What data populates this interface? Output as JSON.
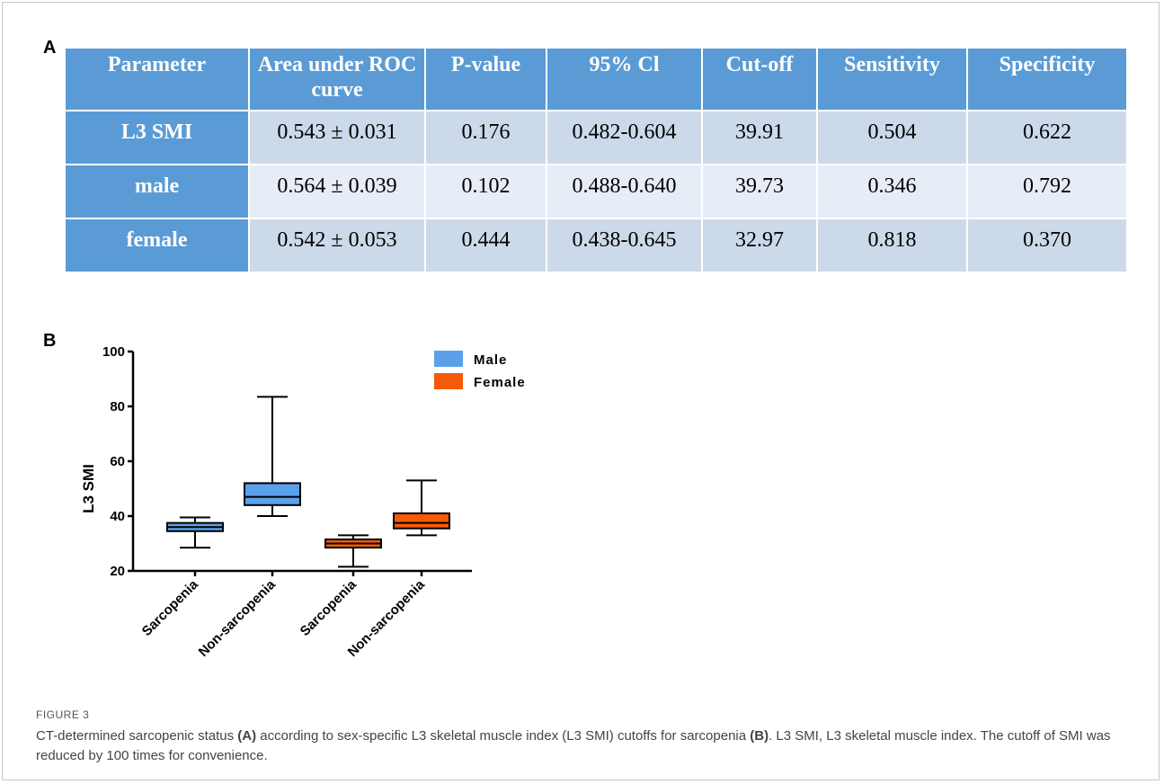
{
  "panel_a_label": "A",
  "panel_b_label": "B",
  "table": {
    "headers": [
      "Parameter",
      "Area under ROC curve",
      "P-value",
      "95% Cl",
      "Cut-off",
      "Sensitivity",
      "Specificity"
    ],
    "rows": [
      [
        "L3 SMI",
        "0.543 ± 0.031",
        "0.176",
        "0.482-0.604",
        "39.91",
        "0.504",
        "0.622"
      ],
      [
        "male",
        "0.564 ± 0.039",
        "0.102",
        "0.488-0.640",
        "39.73",
        "0.346",
        "0.792"
      ],
      [
        "female",
        "0.542 ± 0.053",
        "0.444",
        "0.438-0.645",
        "32.97",
        "0.818",
        "0.370"
      ]
    ]
  },
  "chart_data": {
    "type": "box",
    "ylabel": "L3 SMI",
    "ylim": [
      20,
      100
    ],
    "yticks": [
      20,
      40,
      60,
      80,
      100
    ],
    "categories": [
      "Sarcopenia",
      "Non-sarcopenia",
      "Sarcopenia",
      "Non-sarcopenia"
    ],
    "legend": [
      {
        "name": "Male",
        "color": "#5aa0ea"
      },
      {
        "name": "Female",
        "color": "#f55a0b"
      }
    ],
    "legend_position": "top-right",
    "boxes": [
      {
        "category": "Sarcopenia",
        "group": "Male",
        "min": 28.5,
        "q1": 34.5,
        "median": 36,
        "q3": 37.5,
        "max": 39.5
      },
      {
        "category": "Non-sarcopenia",
        "group": "Male",
        "min": 40,
        "q1": 44,
        "median": 47,
        "q3": 52,
        "max": 83.5
      },
      {
        "category": "Sarcopenia",
        "group": "Female",
        "min": 21.5,
        "q1": 28.5,
        "median": 30,
        "q3": 31.5,
        "max": 33
      },
      {
        "category": "Non-sarcopenia",
        "group": "Female",
        "min": 33,
        "q1": 35.5,
        "median": 37.5,
        "q3": 41,
        "max": 53
      }
    ]
  },
  "figure_label": "FIGURE 3",
  "caption": {
    "part1": "CT-determined sarcopenic status ",
    "ref_a": "(A)",
    "part2": " according to sex-specific L3 skeletal muscle index (L3 SMI) cutoffs for sarcopenia ",
    "ref_b": "(B)",
    "part3": ". L3 SMI, L3 skeletal muscle index. The cutoff of SMI was reduced by 100 times for convenience."
  }
}
